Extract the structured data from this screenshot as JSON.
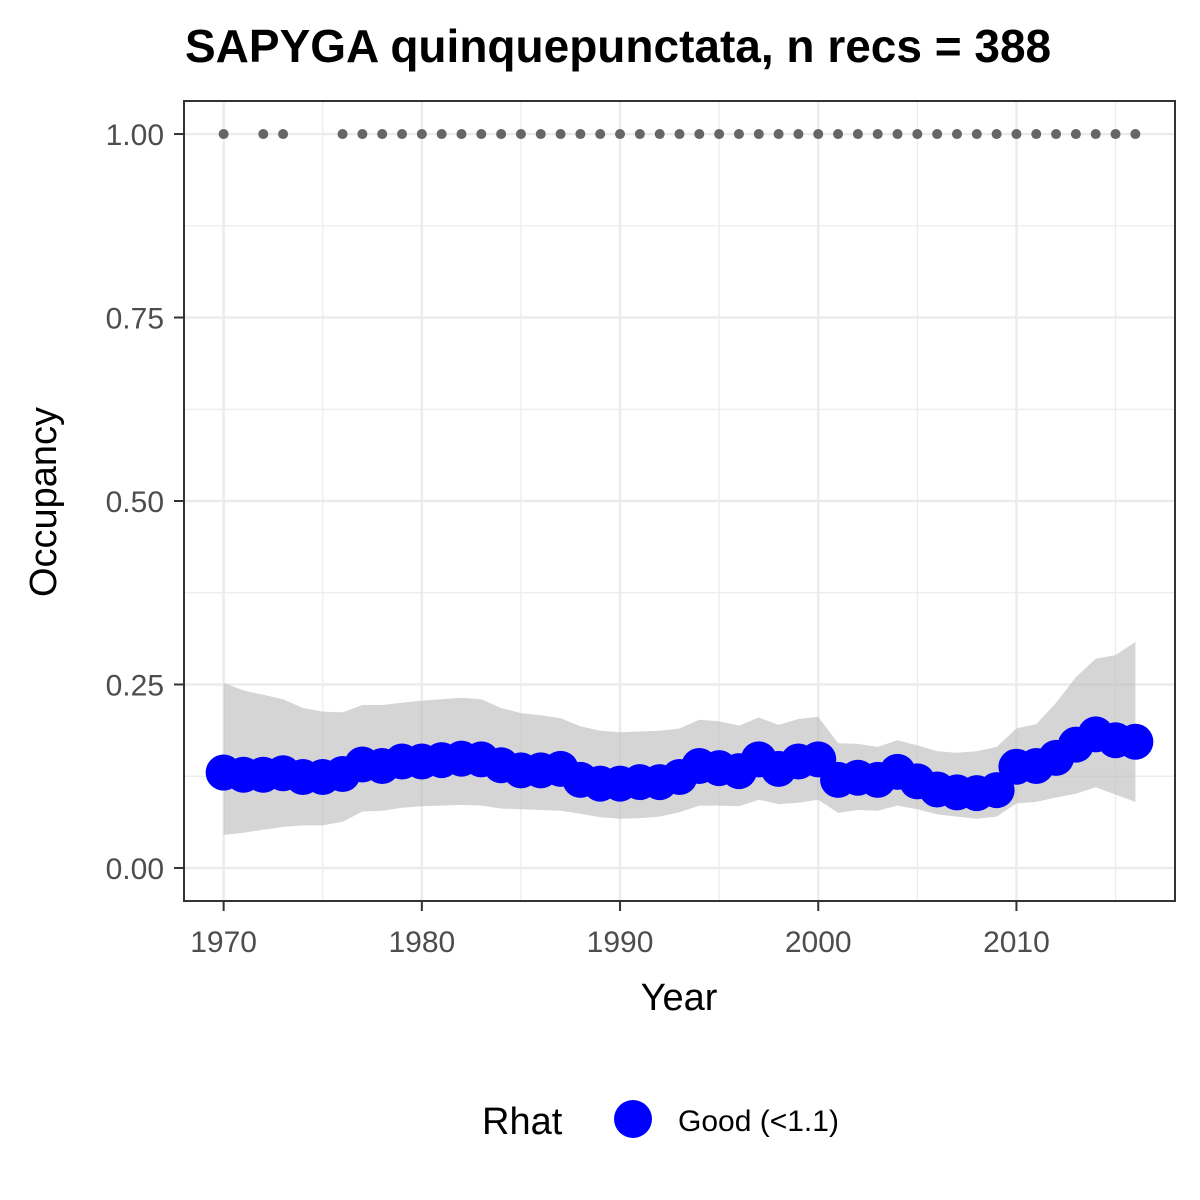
{
  "chart_data": {
    "type": "line",
    "title": "SAPYGA quinquepunctata, n recs = 388",
    "xlabel": "Year",
    "ylabel": "Occupancy",
    "xlim": [
      1968,
      2018
    ],
    "ylim": [
      -0.045,
      1.045
    ],
    "x_ticks": [
      1970,
      1980,
      1990,
      2000,
      2010
    ],
    "x_tick_labels": [
      "1970",
      "1980",
      "1990",
      "2000",
      "2010"
    ],
    "y_ticks": [
      0,
      0.25,
      0.5,
      0.75,
      1.0
    ],
    "y_tick_labels": [
      "0.00",
      "0.25",
      "0.50",
      "0.75",
      "1.00"
    ],
    "grid": true,
    "legend": {
      "title": "Rhat",
      "position": "bottom",
      "entries": [
        {
          "label": "Good (<1.1)",
          "color": "#0000ff"
        }
      ]
    },
    "colors": {
      "occupancy": "#0000ff",
      "ribbon": "#bfbfbf",
      "records": "#666666",
      "grid": "#ebebeb",
      "panel_border": "#333333"
    },
    "series": [
      {
        "name": "Good (<1.1)",
        "x": [
          1970,
          1971,
          1972,
          1973,
          1974,
          1975,
          1976,
          1977,
          1978,
          1979,
          1980,
          1981,
          1982,
          1983,
          1984,
          1985,
          1986,
          1987,
          1988,
          1989,
          1990,
          1991,
          1992,
          1993,
          1994,
          1995,
          1996,
          1997,
          1998,
          1999,
          2000,
          2001,
          2002,
          2003,
          2004,
          2005,
          2006,
          2007,
          2008,
          2009,
          2010,
          2011,
          2012,
          2013,
          2014,
          2015,
          2016
        ],
        "y": [
          0.13,
          0.127,
          0.127,
          0.129,
          0.124,
          0.124,
          0.128,
          0.141,
          0.139,
          0.145,
          0.145,
          0.147,
          0.149,
          0.148,
          0.14,
          0.133,
          0.133,
          0.135,
          0.12,
          0.115,
          0.115,
          0.117,
          0.117,
          0.124,
          0.139,
          0.136,
          0.132,
          0.148,
          0.135,
          0.145,
          0.148,
          0.12,
          0.123,
          0.12,
          0.131,
          0.118,
          0.107,
          0.103,
          0.102,
          0.106,
          0.138,
          0.139,
          0.15,
          0.168,
          0.182,
          0.174,
          0.172
        ],
        "lower": [
          0.045,
          0.048,
          0.052,
          0.056,
          0.058,
          0.058,
          0.063,
          0.077,
          0.078,
          0.082,
          0.084,
          0.085,
          0.086,
          0.085,
          0.081,
          0.08,
          0.079,
          0.078,
          0.074,
          0.069,
          0.067,
          0.068,
          0.07,
          0.076,
          0.085,
          0.085,
          0.084,
          0.093,
          0.087,
          0.089,
          0.093,
          0.075,
          0.079,
          0.078,
          0.085,
          0.08,
          0.073,
          0.07,
          0.067,
          0.07,
          0.088,
          0.09,
          0.096,
          0.101,
          0.11,
          0.1,
          0.09
        ],
        "upper": [
          0.252,
          0.242,
          0.236,
          0.23,
          0.218,
          0.213,
          0.212,
          0.222,
          0.222,
          0.225,
          0.228,
          0.23,
          0.232,
          0.23,
          0.218,
          0.211,
          0.208,
          0.204,
          0.193,
          0.187,
          0.185,
          0.186,
          0.187,
          0.19,
          0.202,
          0.2,
          0.194,
          0.205,
          0.195,
          0.203,
          0.206,
          0.17,
          0.169,
          0.165,
          0.174,
          0.167,
          0.159,
          0.157,
          0.159,
          0.165,
          0.19,
          0.196,
          0.225,
          0.26,
          0.285,
          0.29,
          0.308
        ]
      }
    ],
    "records_x": [
      1970,
      1972,
      1973,
      1976,
      1977,
      1978,
      1979,
      1980,
      1981,
      1982,
      1983,
      1984,
      1985,
      1986,
      1987,
      1988,
      1989,
      1990,
      1991,
      1992,
      1993,
      1994,
      1995,
      1996,
      1997,
      1998,
      1999,
      2000,
      2001,
      2002,
      2003,
      2004,
      2005,
      2006,
      2007,
      2008,
      2009,
      2010,
      2011,
      2012,
      2013,
      2014,
      2015,
      2016
    ],
    "records_y": 1.0
  }
}
